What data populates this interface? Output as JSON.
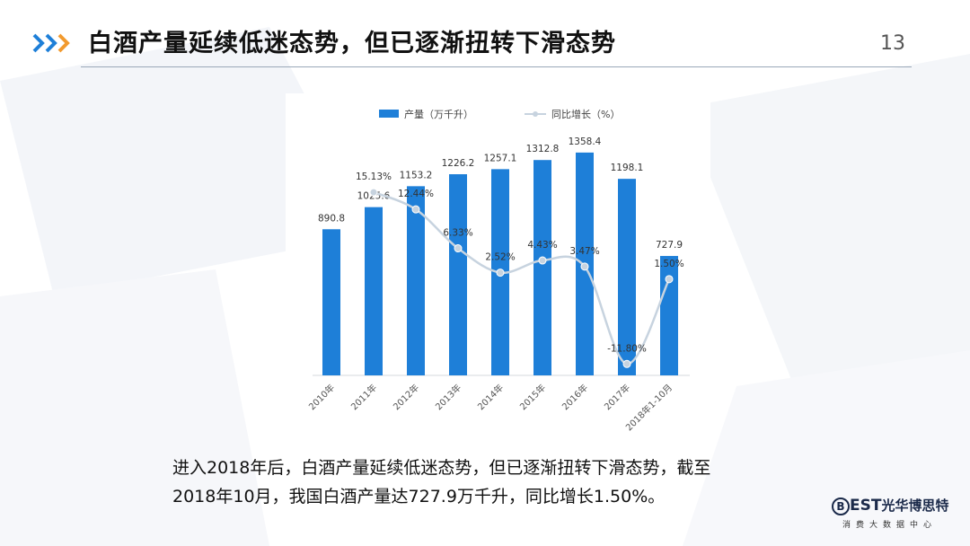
{
  "header": {
    "title": "白酒产量延续低迷态势，但已逐渐扭转下滑态势",
    "page_number": "13"
  },
  "colors": {
    "accent_blue": "#1e7fd8",
    "accent_orange": "#f29a2e",
    "bar_blue": "#1e7fd8",
    "line_gray": "#c7d3df"
  },
  "caption": {
    "line1": "进入2018年后，白酒产量延续低迷态势，但已逐渐扭转下滑态势，截至",
    "line2": "2018年10月，我国白酒产量达727.9万千升，同比增长1.50%。"
  },
  "logo": {
    "mark_b": "B",
    "mark_est": "EST",
    "mark_name": "光华博思特",
    "subtitle": "消费大数据中心"
  },
  "chart_data": {
    "type": "bar",
    "categories": [
      "2010年",
      "2011年",
      "2012年",
      "2013年",
      "2014年",
      "2015年",
      "2016年",
      "2017年",
      "2018年1-10月"
    ],
    "series": [
      {
        "name": "产量（万千升）",
        "type": "bar",
        "values": [
          890.8,
          1025.6,
          1153.2,
          1226.2,
          1257.1,
          1312.8,
          1358.4,
          1198.1,
          727.9
        ],
        "labels": [
          "890.8",
          "1025.6",
          "1153.2",
          "1226.2",
          "1257.1",
          "1312.8",
          "1358.4",
          "1198.1",
          "727.9"
        ]
      },
      {
        "name": "同比增长（%）",
        "type": "line",
        "values": [
          null,
          15.13,
          12.44,
          6.33,
          2.52,
          4.43,
          3.47,
          -11.8,
          1.5
        ],
        "labels": [
          "",
          "15.13%",
          "12.44%",
          "6.33%",
          "2.52%",
          "4.43%",
          "3.47%",
          "-11.80%",
          "1.50%"
        ]
      }
    ],
    "bar_ylim": [
      0,
      1500
    ],
    "line_ylim": [
      -15,
      25
    ],
    "legend_position": "top",
    "grid": false
  }
}
